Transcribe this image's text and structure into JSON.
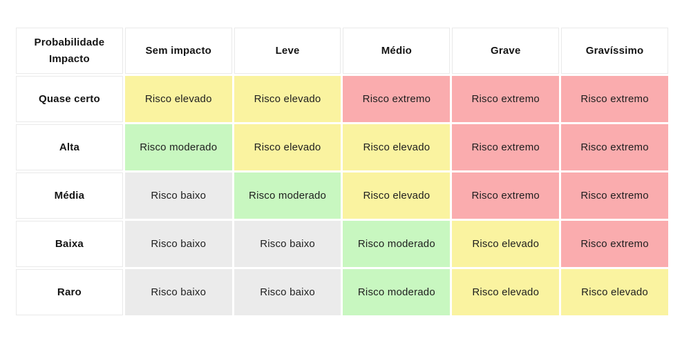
{
  "page": {
    "background": "#ffffff"
  },
  "colors": {
    "cell_border": "#e9e9e9",
    "header_text": "#141414",
    "cell_text": "#1e1e1e"
  },
  "chart_data": {
    "type": "heatmap",
    "title": "",
    "xlabel": "Impacto",
    "ylabel": "Probabilidade",
    "x_categories": [
      "Sem impacto",
      "Leve",
      "Médio",
      "Grave",
      "Gravíssimo"
    ],
    "y_categories": [
      "Quase certo",
      "Alta",
      "Média",
      "Baixa",
      "Raro"
    ],
    "risk_levels": {
      "baixo": {
        "label": "Risco baixo",
        "color": "#ebebeb"
      },
      "moderado": {
        "label": "Risco moderado",
        "color": "#c8f7c0"
      },
      "elevado": {
        "label": "Risco elevado",
        "color": "#faf3a0"
      },
      "extremo": {
        "label": "Risco extremo",
        "color": "#faacae"
      }
    },
    "cells": [
      [
        "elevado",
        "elevado",
        "extremo",
        "extremo",
        "extremo"
      ],
      [
        "moderado",
        "elevado",
        "elevado",
        "extremo",
        "extremo"
      ],
      [
        "baixo",
        "moderado",
        "elevado",
        "extremo",
        "extremo"
      ],
      [
        "baixo",
        "baixo",
        "moderado",
        "elevado",
        "extremo"
      ],
      [
        "baixo",
        "baixo",
        "moderado",
        "elevado",
        "elevado"
      ]
    ],
    "legend_position": "none",
    "grid": false
  }
}
